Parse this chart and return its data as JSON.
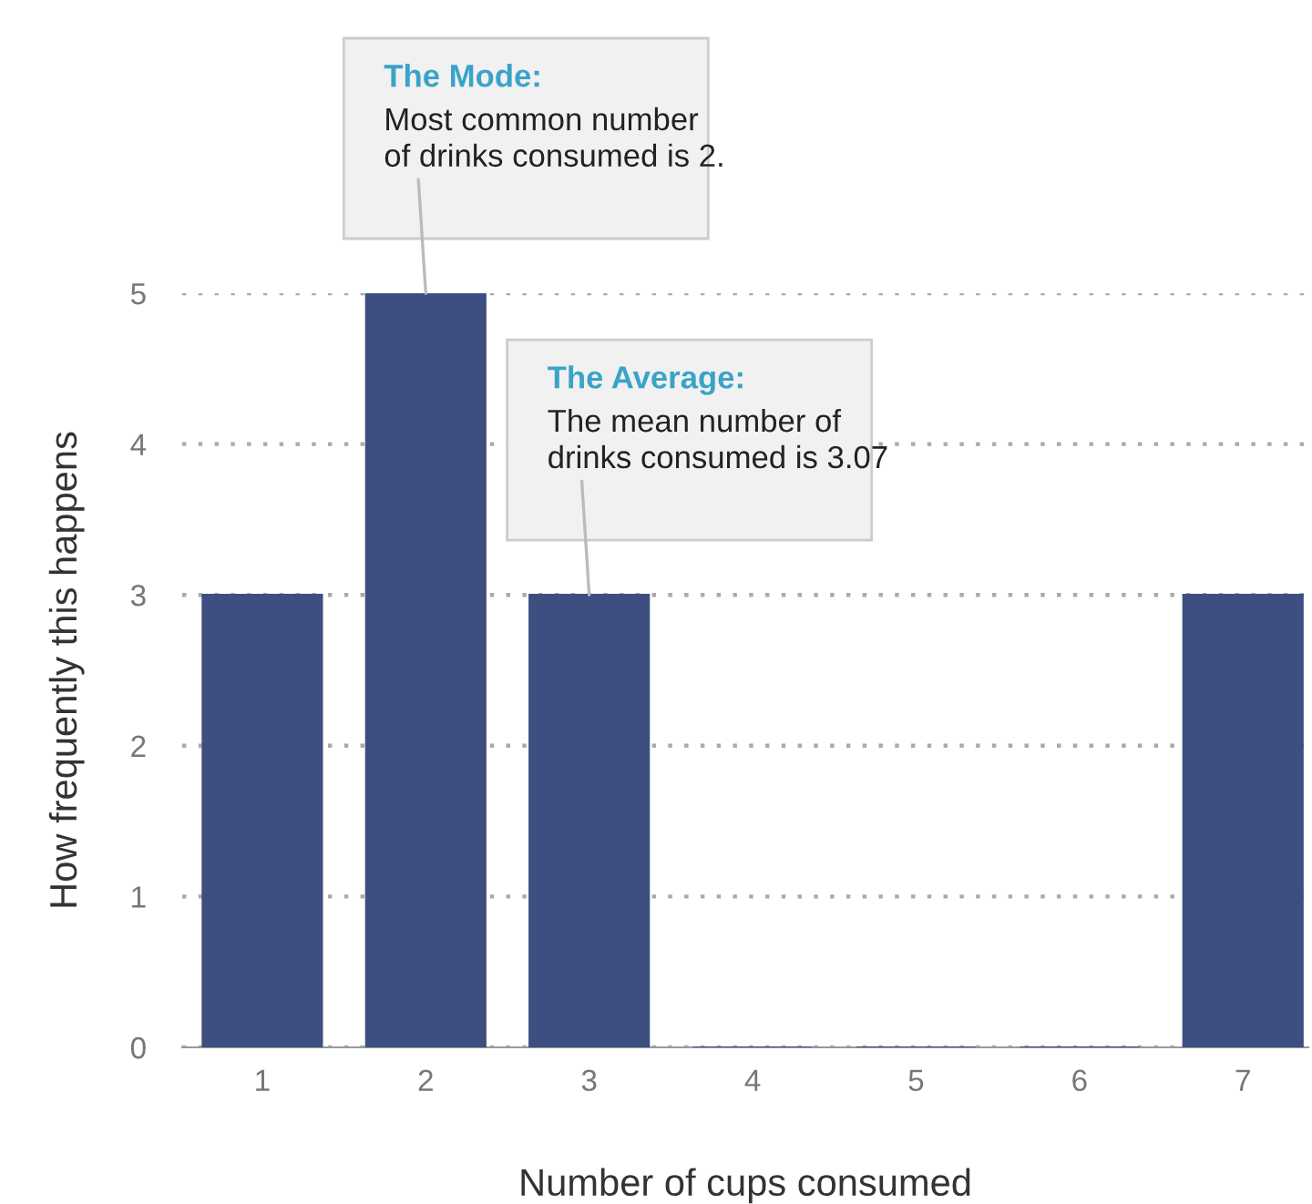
{
  "chart_data": {
    "type": "bar",
    "xlabel": "Number of cups consumed",
    "ylabel": "How frequently this happens",
    "categories": [
      "1",
      "2",
      "3",
      "4",
      "5",
      "6",
      "7"
    ],
    "values": [
      3,
      5,
      3,
      0,
      0,
      0,
      3
    ],
    "color": "#3d4f80",
    "ylim": [
      0,
      5
    ],
    "yticks": [
      0,
      1,
      2,
      3,
      4,
      5
    ],
    "grid": "y",
    "annotations": [
      {
        "text": "The Mode:\nMost common number\nof drinks consumed is 2.",
        "x": "2",
        "y": 5
      },
      {
        "text": "The Average:\nThe mean number of\ndrinks consumed is 3.07",
        "x": "3",
        "y": 3
      }
    ]
  }
}
